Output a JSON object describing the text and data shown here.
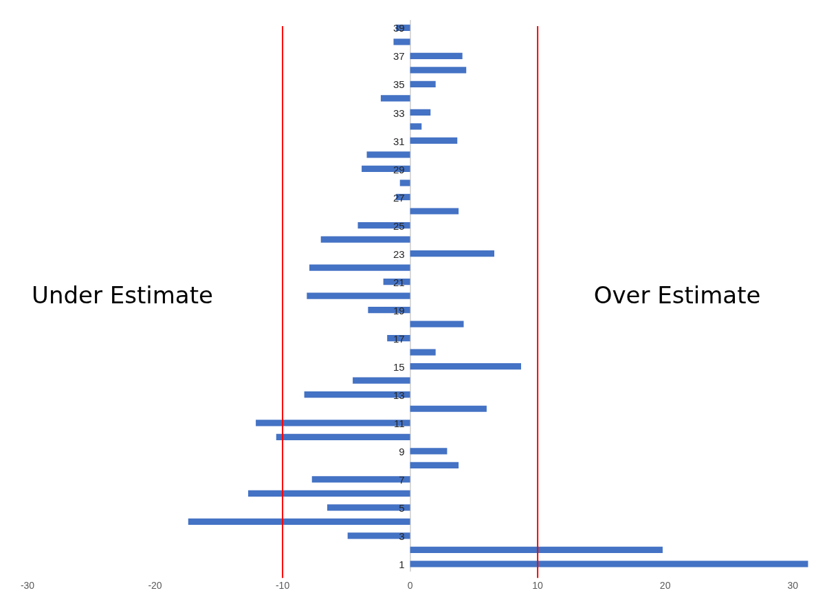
{
  "chart_data": {
    "type": "bar",
    "orientation": "horizontal",
    "categories": [
      "39",
      null,
      "37",
      null,
      "35",
      null,
      "33",
      null,
      "31",
      null,
      "29",
      null,
      "27",
      null,
      "25",
      null,
      "23",
      null,
      "21",
      null,
      "19",
      null,
      "17",
      null,
      "15",
      null,
      "13",
      null,
      "11",
      null,
      "9",
      null,
      "7",
      null,
      "5",
      null,
      "3",
      null,
      "1"
    ],
    "values": [
      -1.1,
      -1.3,
      4.1,
      4.4,
      2.0,
      -2.3,
      1.6,
      0.9,
      3.7,
      -3.4,
      -3.8,
      -0.8,
      -1.1,
      3.8,
      -4.1,
      -7.0,
      6.6,
      -7.9,
      -2.1,
      -8.1,
      -3.3,
      4.2,
      -1.8,
      2.0,
      8.7,
      -4.5,
      -8.3,
      6.0,
      -12.1,
      -10.5,
      2.9,
      3.8,
      -7.7,
      -12.7,
      -6.5,
      -17.4,
      -4.9,
      19.8,
      31.2
    ],
    "color": "#4472c4",
    "xlim": [
      -30,
      31.5
    ],
    "xticks": [
      -30,
      -20,
      -10,
      0,
      10,
      20,
      30
    ],
    "grid": false,
    "legend": false,
    "ref_lines": [
      {
        "axis": "x",
        "value": -10,
        "color": "#ff0000"
      },
      {
        "axis": "x",
        "value": 10,
        "color": "#ff0000"
      }
    ],
    "annotations": [
      "Under Estimate",
      "Over Estimate"
    ]
  }
}
